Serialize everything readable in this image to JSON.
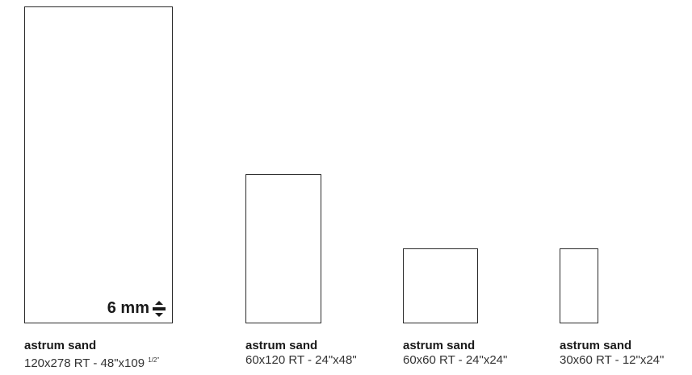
{
  "thickness": {
    "label": "6 mm",
    "icon": "thickness-icon"
  },
  "tiles": [
    {
      "name": "astrum sand",
      "size": "120x278 RT - 48\"x109",
      "fraction": "1/2\""
    },
    {
      "name": "astrum sand",
      "size": "60x120 RT - 24\"x48\""
    },
    {
      "name": "astrum sand",
      "size": "60x60 RT - 24\"x24\""
    },
    {
      "name": "astrum sand",
      "size": "30x60 RT - 12\"x24\""
    }
  ]
}
